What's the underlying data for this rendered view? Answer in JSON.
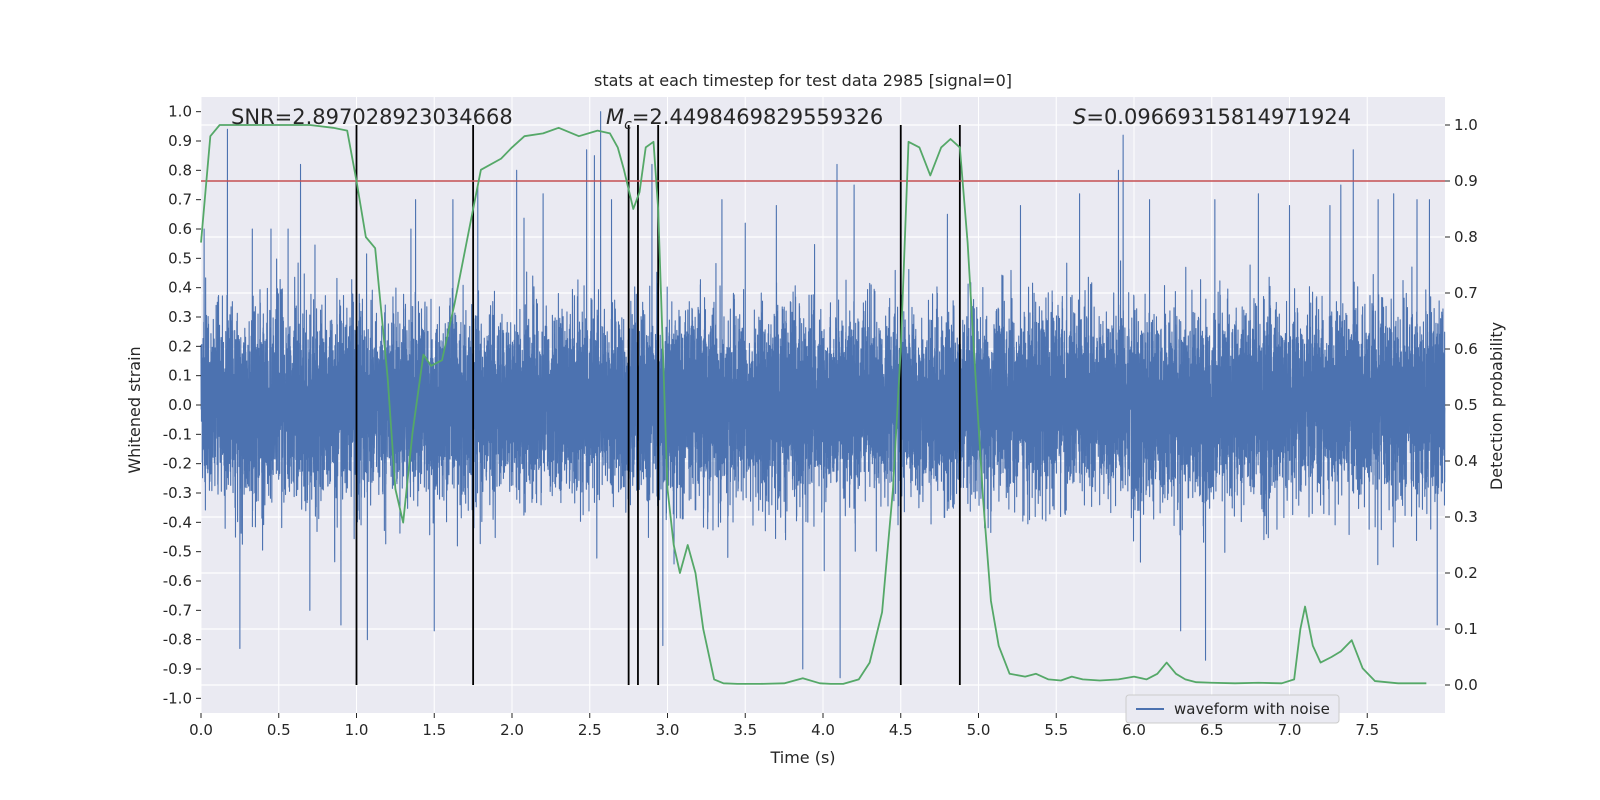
{
  "chart_data": {
    "type": "line",
    "title": "stats at each timestep for test data 2985 [signal=0]",
    "xlabel": "Time (s)",
    "ylabel_left": "Whitened strain",
    "ylabel_right": "Detection probability",
    "xlim": [
      0,
      8
    ],
    "ylim_left": [
      -1.05,
      1.05
    ],
    "ylim_right": [
      -0.05,
      1.05
    ],
    "x_ticks": [
      "0.0",
      "0.5",
      "1.0",
      "1.5",
      "2.0",
      "2.5",
      "3.0",
      "3.5",
      "4.0",
      "4.5",
      "5.0",
      "5.5",
      "6.0",
      "6.5",
      "7.0",
      "7.5"
    ],
    "y_ticks_left": [
      "1.0",
      "0.9",
      "0.8",
      "0.7",
      "0.6",
      "0.5",
      "0.4",
      "0.3",
      "0.2",
      "0.1",
      "0.0",
      "-0.1",
      "-0.2",
      "-0.3",
      "-0.4",
      "-0.5",
      "-0.6",
      "-0.7",
      "-0.8",
      "-0.9",
      "-1.0"
    ],
    "y_ticks_right": [
      "1.0",
      "0.9",
      "0.8",
      "0.7",
      "0.6",
      "0.5",
      "0.4",
      "0.3",
      "0.2",
      "0.1",
      "0.0"
    ],
    "grid": true,
    "annotations": {
      "snr": "SNR=2.897028923034668",
      "mc_symbol": "M",
      "mc_sub": "c",
      "mc_value": "=2.4498469829559326",
      "s_symbol": "S",
      "s_value": "=0.09669315814971924"
    },
    "legend": {
      "placement": "lower-right",
      "entries": [
        "waveform with noise"
      ]
    },
    "threshold": {
      "value": 0.9,
      "axis": "right",
      "color": "#c44e52"
    },
    "vertical_lines": [
      1.0,
      1.75,
      2.75,
      2.81,
      2.94,
      4.5,
      4.88
    ],
    "series": [
      {
        "name": "waveform with noise",
        "axis": "left",
        "color": "#4c72b0",
        "kind": "noise",
        "sample_rate_hz": 2048,
        "band_core": 0.35,
        "peaks": [
          [
            0.02,
            0.6
          ],
          [
            0.17,
            0.94
          ],
          [
            0.25,
            -0.83
          ],
          [
            0.33,
            0.6
          ],
          [
            0.45,
            0.6
          ],
          [
            0.56,
            0.6
          ],
          [
            0.64,
            0.82
          ],
          [
            0.7,
            -0.7
          ],
          [
            0.9,
            -0.75
          ],
          [
            1.07,
            -0.8
          ],
          [
            1.35,
            0.6
          ],
          [
            1.38,
            0.7
          ],
          [
            1.5,
            -0.77
          ],
          [
            1.62,
            0.7
          ],
          [
            1.78,
            0.75
          ],
          [
            2.03,
            0.8
          ],
          [
            2.2,
            0.72
          ],
          [
            2.48,
            0.87
          ],
          [
            2.53,
            0.85
          ],
          [
            2.57,
            1.0
          ],
          [
            2.64,
            0.7
          ],
          [
            2.75,
            -0.75
          ],
          [
            2.9,
            0.82
          ],
          [
            2.97,
            -0.82
          ],
          [
            3.35,
            0.7
          ],
          [
            3.5,
            0.62
          ],
          [
            3.7,
            0.68
          ],
          [
            3.87,
            -0.9
          ],
          [
            4.09,
            0.82
          ],
          [
            4.11,
            -0.93
          ],
          [
            4.2,
            0.75
          ],
          [
            4.8,
            0.65
          ],
          [
            5.27,
            0.68
          ],
          [
            5.65,
            0.72
          ],
          [
            5.9,
            0.8
          ],
          [
            5.93,
            0.92
          ],
          [
            6.1,
            0.7
          ],
          [
            6.3,
            -0.77
          ],
          [
            6.46,
            -0.87
          ],
          [
            6.52,
            0.7
          ],
          [
            6.8,
            0.72
          ],
          [
            7.0,
            0.68
          ],
          [
            7.26,
            0.68
          ],
          [
            7.33,
            0.75
          ],
          [
            7.41,
            0.87
          ],
          [
            7.57,
            0.7
          ],
          [
            7.67,
            0.72
          ],
          [
            7.82,
            0.7
          ],
          [
            7.9,
            0.7
          ],
          [
            7.95,
            -0.75
          ]
        ]
      },
      {
        "name": "",
        "axis": "right",
        "color": "#55a868",
        "x": [
          0.0,
          0.06,
          0.12,
          0.2,
          0.3,
          0.5,
          0.7,
          0.85,
          0.94,
          1.0,
          1.06,
          1.12,
          1.2,
          1.25,
          1.3,
          1.36,
          1.43,
          1.48,
          1.55,
          1.63,
          1.75,
          1.8,
          1.93,
          2.0,
          2.08,
          2.2,
          2.3,
          2.43,
          2.55,
          2.63,
          2.68,
          2.72,
          2.78,
          2.82,
          2.86,
          2.91,
          2.94,
          2.97,
          3.0,
          3.04,
          3.08,
          3.13,
          3.18,
          3.23,
          3.3,
          3.36,
          3.45,
          3.6,
          3.75,
          3.87,
          3.98,
          4.05,
          4.13,
          4.23,
          4.3,
          4.38,
          4.45,
          4.5,
          4.55,
          4.62,
          4.69,
          4.76,
          4.82,
          4.88,
          4.93,
          4.97,
          5.03,
          5.08,
          5.13,
          5.2,
          5.3,
          5.37,
          5.45,
          5.53,
          5.6,
          5.67,
          5.78,
          5.9,
          6.0,
          6.08,
          6.15,
          6.21,
          6.27,
          6.33,
          6.4,
          6.5,
          6.65,
          6.8,
          6.95,
          7.03,
          7.07,
          7.1,
          7.15,
          7.2,
          7.27,
          7.33,
          7.4,
          7.47,
          7.55,
          7.7,
          7.88
        ],
        "y": [
          0.79,
          0.98,
          1.0,
          1.0,
          1.0,
          1.0,
          1.0,
          0.995,
          0.99,
          0.9,
          0.8,
          0.78,
          0.55,
          0.35,
          0.29,
          0.45,
          0.59,
          0.57,
          0.58,
          0.68,
          0.85,
          0.92,
          0.94,
          0.96,
          0.98,
          0.985,
          0.995,
          0.98,
          0.99,
          0.985,
          0.96,
          0.92,
          0.85,
          0.88,
          0.96,
          0.97,
          0.85,
          0.6,
          0.35,
          0.25,
          0.2,
          0.25,
          0.2,
          0.1,
          0.01,
          0.003,
          0.002,
          0.002,
          0.003,
          0.012,
          0.003,
          0.002,
          0.002,
          0.01,
          0.04,
          0.13,
          0.35,
          0.6,
          0.97,
          0.96,
          0.91,
          0.96,
          0.975,
          0.96,
          0.79,
          0.6,
          0.33,
          0.15,
          0.07,
          0.02,
          0.015,
          0.02,
          0.01,
          0.008,
          0.015,
          0.01,
          0.008,
          0.01,
          0.015,
          0.01,
          0.02,
          0.04,
          0.02,
          0.01,
          0.005,
          0.004,
          0.003,
          0.004,
          0.003,
          0.01,
          0.1,
          0.14,
          0.07,
          0.04,
          0.05,
          0.06,
          0.08,
          0.03,
          0.007,
          0.003,
          0.003
        ]
      }
    ]
  }
}
